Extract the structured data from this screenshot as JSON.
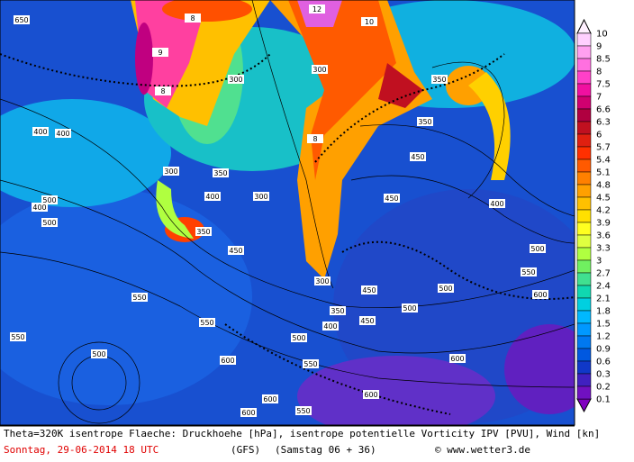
{
  "caption": {
    "line1": "Theta=320K isentrope Flaeche: Druckhoehe [hPa], isentrope potentielle Vorticity IPV [PVU], Wind [kn]",
    "date": "Sonntag, 29-06-2014  18 UTC",
    "model": "(GFS)",
    "run": "(Samstag 06 + 36)",
    "copyright": "© www.wetter3.de"
  },
  "colorbar": {
    "labels": [
      10,
      9,
      8.5,
      8,
      7.5,
      7,
      6.6,
      6.3,
      6,
      5.7,
      5.4,
      5.1,
      4.8,
      4.5,
      4.2,
      3.9,
      3.6,
      3.3,
      3,
      2.7,
      2.4,
      2.1,
      1.8,
      1.5,
      1.2,
      0.9,
      0.6,
      0.3,
      0.2,
      0.1
    ],
    "colors": [
      "#ffd0ff",
      "#ffa0f0",
      "#ff70e0",
      "#ff40c8",
      "#f010a0",
      "#d00070",
      "#b00040",
      "#c01020",
      "#e02010",
      "#ff3000",
      "#ff5a00",
      "#ff8000",
      "#ffa000",
      "#ffc000",
      "#ffe000",
      "#ffff20",
      "#e0ff40",
      "#b0ff40",
      "#70f060",
      "#40e090",
      "#10d8b0",
      "#00d0e0",
      "#00b8ff",
      "#0098ff",
      "#0078f0",
      "#0058e0",
      "#1038c8",
      "#4020c0",
      "#7010c0"
    ]
  },
  "contour_labels": [
    400,
    300,
    300,
    350,
    300,
    350,
    400,
    400,
    450,
    300,
    350,
    300,
    400,
    450,
    500,
    500,
    450,
    400,
    350,
    350,
    400,
    450,
    500,
    550,
    500,
    550,
    600,
    500,
    550,
    600,
    650,
    500,
    550,
    600,
    500,
    450,
    550,
    600,
    600,
    600,
    550,
    12,
    10,
    8,
    9,
    8,
    8
  ]
}
